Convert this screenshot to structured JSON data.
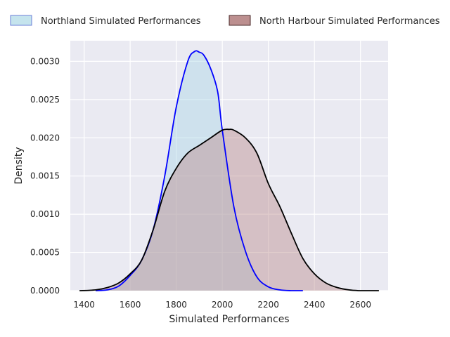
{
  "chart_data": {
    "type": "area",
    "title": "",
    "xlabel": "Simulated Performances",
    "ylabel": "Density",
    "xlim": [
      1340,
      2720
    ],
    "ylim": [
      0,
      0.00327
    ],
    "grid": true,
    "legend_position": "top",
    "x_ticks": [
      1400,
      1600,
      1800,
      2000,
      2200,
      2400,
      2600
    ],
    "y_ticks": [
      0,
      0.0005,
      0.001,
      0.0015,
      0.002,
      0.0025,
      0.003
    ],
    "x_tick_labels": [
      "1400",
      "1600",
      "1800",
      "2000",
      "2200",
      "2400",
      "2600"
    ],
    "y_tick_labels": [
      "0.0000",
      "0.0005",
      "0.0010",
      "0.0015",
      "0.0020",
      "0.0025",
      "0.0030"
    ],
    "series": [
      {
        "name": "Northland Simulated Performances",
        "line_color": "#0000ff",
        "fill_color": "#add8e6",
        "edge_color": "#6a7fd8",
        "x": [
          1450,
          1500,
          1550,
          1600,
          1650,
          1700,
          1750,
          1800,
          1850,
          1880,
          1900,
          1920,
          1950,
          1980,
          2000,
          2050,
          2100,
          2150,
          2200,
          2250,
          2300,
          2350
        ],
        "y": [
          0,
          1e-05,
          6e-05,
          0.0002,
          0.0004,
          0.0008,
          0.0015,
          0.0024,
          0.003,
          0.00313,
          0.00312,
          0.00308,
          0.0029,
          0.0026,
          0.0021,
          0.0011,
          0.00052,
          0.00018,
          5e-05,
          1e-05,
          0,
          0
        ]
      },
      {
        "name": "North Harbour Simulated Performances",
        "line_color": "#000000",
        "fill_color": "#bc8f8f",
        "edge_color": "#4a2a2a",
        "x": [
          1380,
          1450,
          1500,
          1550,
          1600,
          1650,
          1700,
          1750,
          1800,
          1850,
          1900,
          1950,
          2000,
          2030,
          2050,
          2100,
          2150,
          2200,
          2250,
          2300,
          2350,
          2400,
          2450,
          2500,
          2550,
          2600,
          2680
        ],
        "y": [
          0,
          1e-05,
          4e-05,
          0.0001,
          0.00022,
          0.0004,
          0.0008,
          0.0013,
          0.0016,
          0.0018,
          0.0019,
          0.002,
          0.0021,
          0.00211,
          0.0021,
          0.002,
          0.0018,
          0.0014,
          0.0011,
          0.00075,
          0.00042,
          0.00022,
          0.0001,
          4e-05,
          1e-05,
          0,
          0
        ]
      }
    ]
  }
}
